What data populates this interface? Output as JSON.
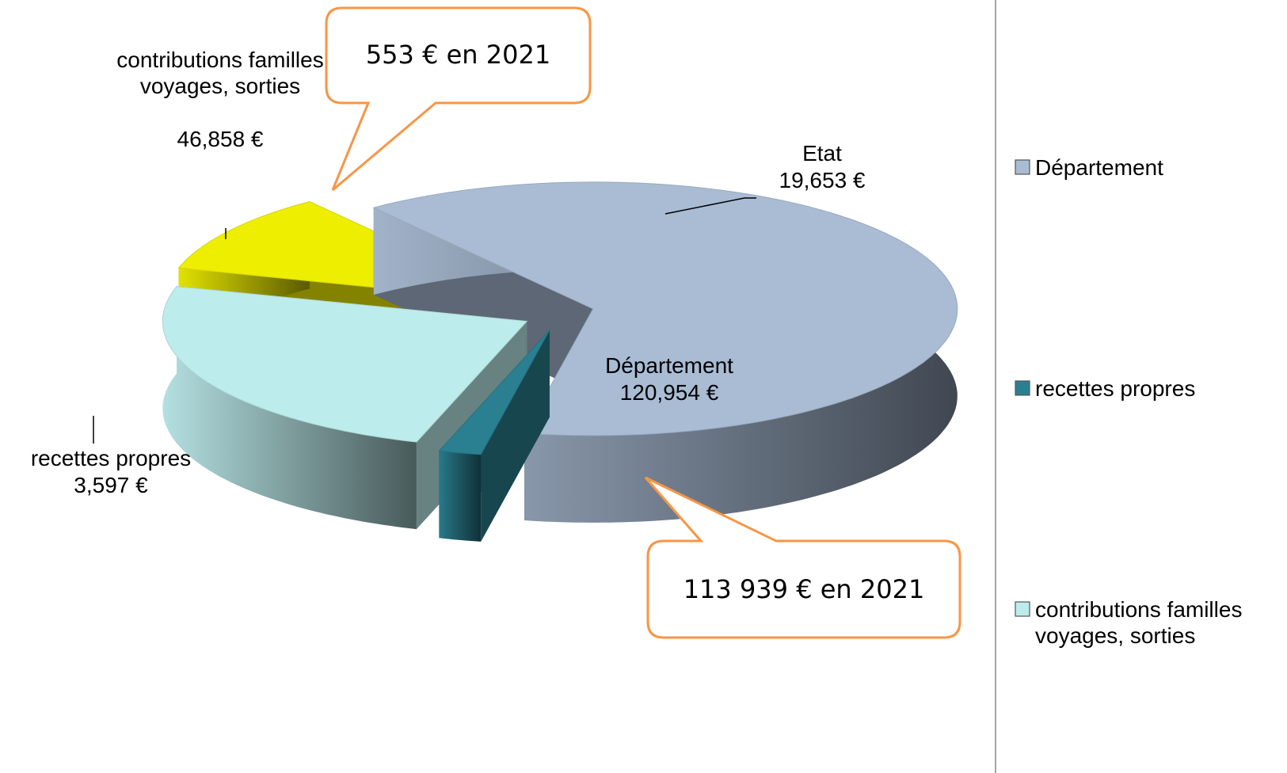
{
  "chart_data": {
    "type": "pie",
    "categories": [
      "Département",
      "recettes propres",
      "contributions familles voyages, sorties",
      "Etat"
    ],
    "values": [
      120954,
      3597,
      46858,
      19653
    ],
    "value_labels": [
      "120,954 €",
      "3,597 €",
      "46,858 €",
      "19,653 €"
    ],
    "colors": [
      "#a9bcd4",
      "#2a7f90",
      "#bdeced",
      "#eeee00"
    ],
    "three_d": true,
    "exploded": true,
    "annotations": [
      "553 € en 2021",
      "113 939 € en 2021"
    ]
  }
}
